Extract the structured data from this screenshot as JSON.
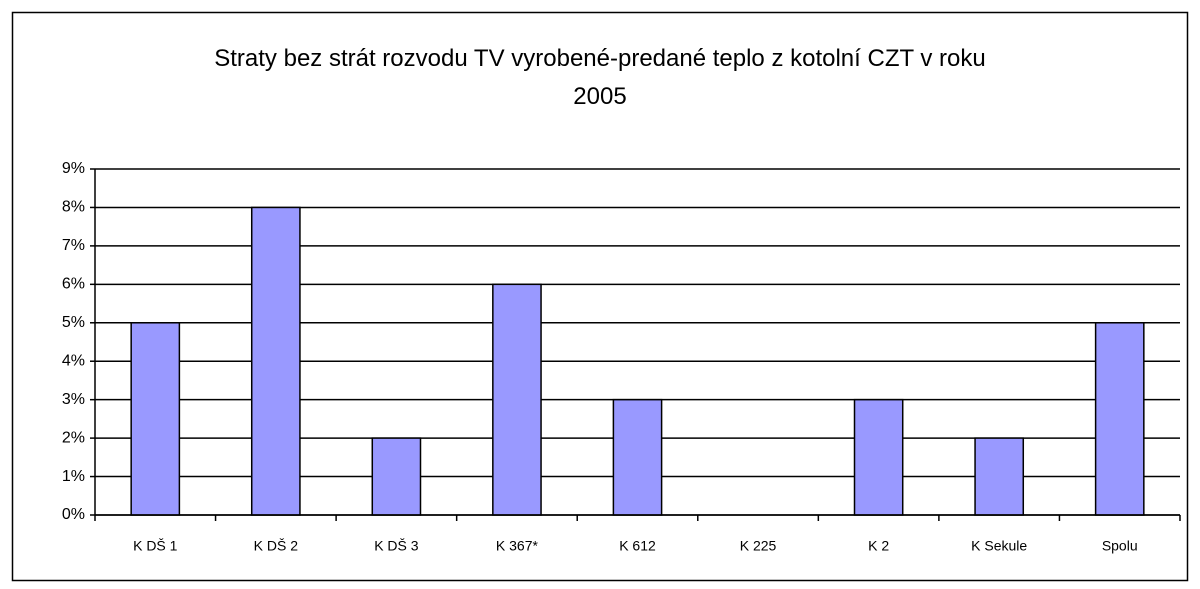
{
  "chart_data": {
    "type": "bar",
    "title": "Straty bez strát rozvodu TV vyrobené-predané teplo z kotolní CZT v roku 2005",
    "categories": [
      "K DŠ 1",
      "K DŠ 2",
      "K DŠ 3",
      "K 367*",
      "K 612",
      "K 225",
      "K 2",
      "K Sekule",
      "Spolu"
    ],
    "values": [
      5,
      8,
      2,
      6,
      3,
      0,
      3,
      2,
      5
    ],
    "color": "#9999ff",
    "ylim": [
      0,
      9
    ],
    "yticks": [
      {
        "value": 0,
        "label": "0%"
      },
      {
        "value": 1,
        "label": "1%"
      },
      {
        "value": 2,
        "label": "2%"
      },
      {
        "value": 3,
        "label": "3%"
      },
      {
        "value": 4,
        "label": "4%"
      },
      {
        "value": 5,
        "label": "5%"
      },
      {
        "value": 6,
        "label": "6%"
      },
      {
        "value": 7,
        "label": "7%"
      },
      {
        "value": 8,
        "label": "8%"
      },
      {
        "value": 9,
        "label": "9%"
      }
    ],
    "grid": true
  }
}
